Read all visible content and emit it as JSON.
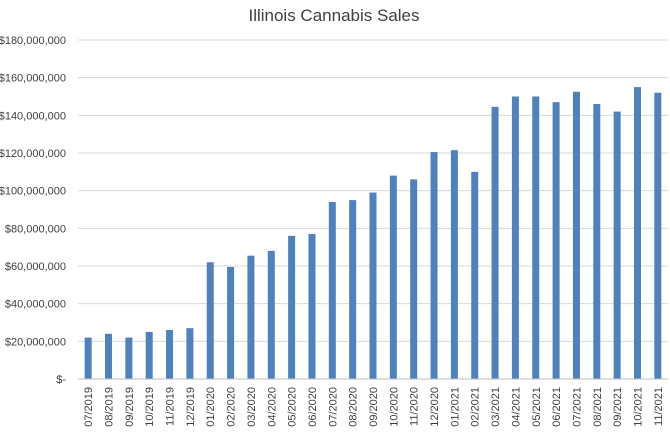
{
  "chart_data": {
    "type": "bar",
    "title": "Illinois Cannabis Sales",
    "xlabel": "",
    "ylabel": "",
    "ylim": [
      0,
      180000000
    ],
    "ytick_values": [
      0,
      20000000,
      40000000,
      60000000,
      80000000,
      100000000,
      120000000,
      140000000,
      160000000,
      180000000
    ],
    "ytick_labels": [
      "$-",
      "$20,000,000",
      "$40,000,000",
      "$60,000,000",
      "$80,000,000",
      "$100,000,000",
      "$120,000,000",
      "$140,000,000",
      "$160,000,000",
      "$180,000,000"
    ],
    "grid": true,
    "bar_color": "#4f81bd",
    "categories": [
      "07/2019",
      "08/2019",
      "09/2019",
      "10/2019",
      "11/2019",
      "12/2019",
      "01/2020",
      "02/2020",
      "03/2020",
      "04/2020",
      "05/2020",
      "06/2020",
      "07/2020",
      "08/2020",
      "09/2020",
      "10/2020",
      "11/2020",
      "12/2020",
      "01/2021",
      "02/2021",
      "03/2021",
      "04/2021",
      "05/2021",
      "06/2021",
      "07/2021",
      "08/2021",
      "09/2021",
      "10/2021",
      "11/2021"
    ],
    "values": [
      22000000,
      24000000,
      22000000,
      25000000,
      26000000,
      27000000,
      62000000,
      59500000,
      65500000,
      68000000,
      76000000,
      77000000,
      94000000,
      95000000,
      99000000,
      108000000,
      106000000,
      120500000,
      121500000,
      110000000,
      144500000,
      150000000,
      150000000,
      147000000,
      152500000,
      146000000,
      142000000,
      155000000,
      152000000
    ]
  }
}
